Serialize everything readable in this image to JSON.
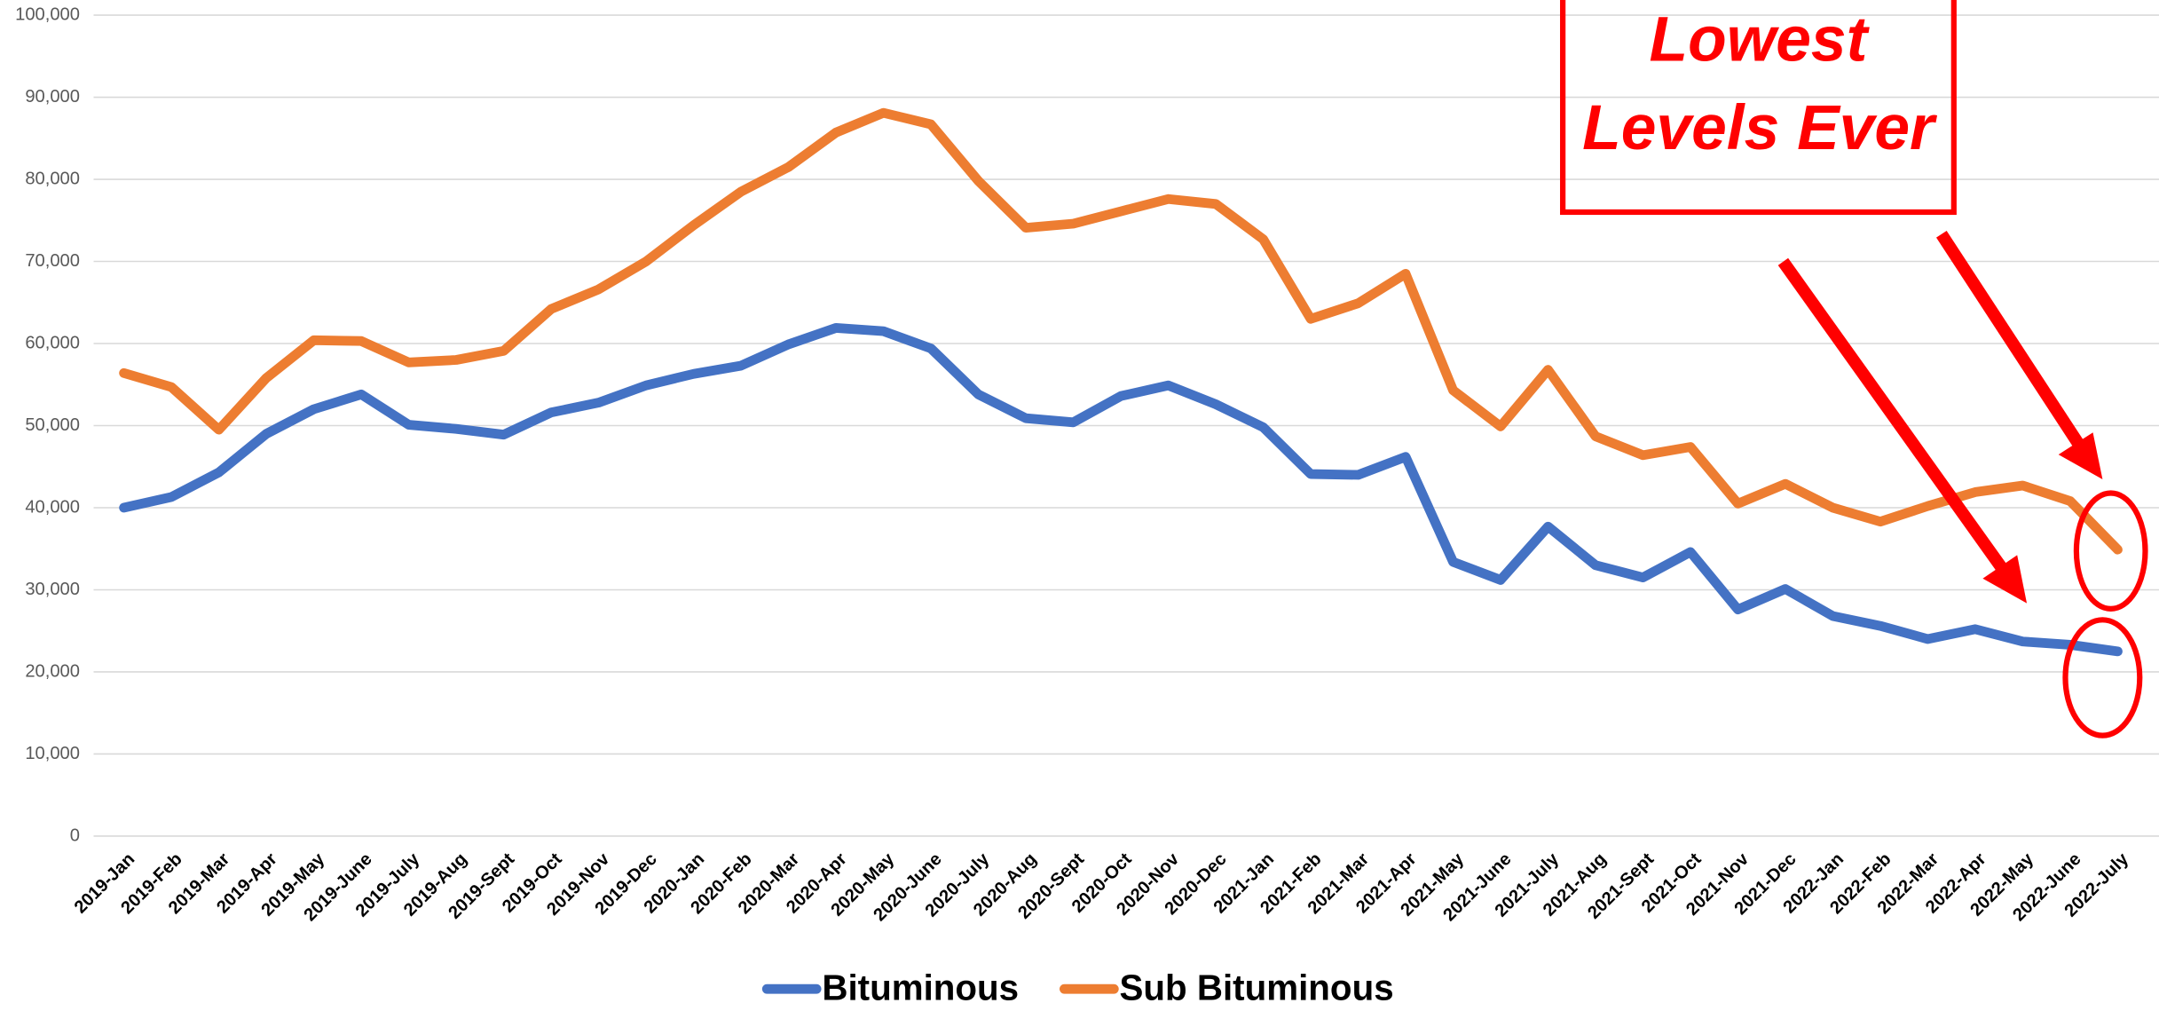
{
  "chart_data": {
    "type": "line",
    "categories": [
      "2019-Jan",
      "2019-Feb",
      "2019-Mar",
      "2019-Apr",
      "2019-May",
      "2019-June",
      "2019-July",
      "2019-Aug",
      "2019-Sept",
      "2019-Oct",
      "2019-Nov",
      "2019-Dec",
      "2020-Jan",
      "2020-Feb",
      "2020-Mar",
      "2020-Apr",
      "2020-May",
      "2020-June",
      "2020-July",
      "2020-Aug",
      "2020-Sept",
      "2020-Oct",
      "2020-Nov",
      "2020-Dec",
      "2021-Jan",
      "2021-Feb",
      "2021-Mar",
      "2021-Apr",
      "2021-May",
      "2021-June",
      "2021-July",
      "2021-Aug",
      "2021-Sept",
      "2021-Oct",
      "2021-Nov",
      "2021-Dec",
      "2022-Jan",
      "2022-Feb",
      "2022-Mar",
      "2022-Apr",
      "2022-May",
      "2022-June",
      "2022-July"
    ],
    "series": [
      {
        "name": "Bituminous",
        "color": "#4472c4",
        "values": [
          40000,
          41300,
          44300,
          49000,
          52000,
          53800,
          50100,
          49600,
          48900,
          51600,
          52800,
          54900,
          56300,
          57300,
          59900,
          61900,
          61500,
          59400,
          53800,
          50900,
          50400,
          53600,
          54900,
          52600,
          49800,
          44100,
          44000,
          46200,
          33400,
          31200,
          37700,
          33000,
          31500,
          34600,
          27600,
          30100,
          26800,
          25600,
          24000,
          25200,
          23700,
          23300,
          22500
        ]
      },
      {
        "name": "Sub Bituminous",
        "color": "#ed7d31",
        "values": [
          56400,
          54700,
          49500,
          55800,
          60400,
          60300,
          57700,
          58000,
          59100,
          64200,
          66600,
          70000,
          74400,
          78500,
          81500,
          85700,
          88100,
          86700,
          79800,
          74100,
          74600,
          76100,
          77600,
          77000,
          72700,
          63000,
          64900,
          68500,
          54300,
          49900,
          56800,
          48700,
          46400,
          47400,
          40500,
          42900,
          40000,
          38300,
          40200,
          41900,
          42700,
          40800,
          34900
        ]
      }
    ],
    "ylim": [
      0,
      100000
    ],
    "yticks": [
      0,
      {
        "value": 10000,
        "label": "10,000"
      },
      {
        "value": 20000,
        "label": "20,000"
      },
      {
        "value": 30000,
        "label": "30,000"
      },
      {
        "value": 40000,
        "label": "40,000"
      },
      {
        "value": 50000,
        "label": "50,000"
      },
      {
        "value": 60000,
        "label": "60,000"
      },
      {
        "value": 70000,
        "label": "70,000"
      },
      {
        "value": 80000,
        "label": "80,000"
      },
      {
        "value": 90000,
        "label": "90,000"
      },
      {
        "value": 100000,
        "label": "100,000"
      }
    ],
    "grid": true,
    "legend": "bottom",
    "annotation": [
      "Lowest",
      "Levels Ever"
    ]
  }
}
